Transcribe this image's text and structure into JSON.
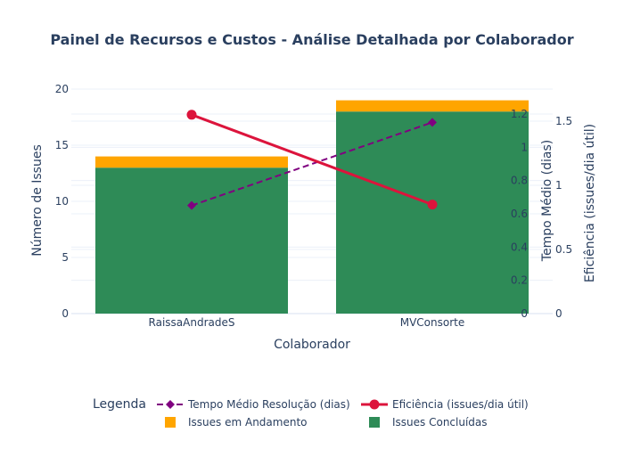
{
  "chart_data": {
    "type": "bar",
    "title": "Painel de Recursos e Custos - Análise Detalhada por Colaborador",
    "xlabel": "Colaborador",
    "categories": [
      "RaissaAndradeS",
      "MVConsorte"
    ],
    "barmode": "stack",
    "grid": true,
    "legend_position": "bottom-center",
    "legend_title": "Legenda",
    "axes": {
      "y": {
        "label": "Número de Issues",
        "range": [
          0,
          20
        ],
        "ticks": [
          "0",
          "5",
          "10",
          "15",
          "20"
        ]
      },
      "y2": {
        "label": "Tempo Médio (dias)",
        "range": [
          0,
          1.35
        ],
        "ticks": [
          "0",
          "0.2",
          "0.4",
          "0.6",
          "0.8",
          "1",
          "1.2"
        ]
      },
      "y3": {
        "label": "Eficiência (issues/dia útil)",
        "range": [
          0,
          1.75
        ],
        "ticks": [
          "0",
          "0.5",
          "1",
          "1.5"
        ]
      }
    },
    "series": [
      {
        "name": "Issues Concluídas",
        "type": "bar",
        "axis": "y",
        "color": "#2e8b57",
        "values": [
          13,
          18
        ]
      },
      {
        "name": "Issues em Andamento",
        "type": "bar",
        "axis": "y",
        "color": "#ffa500",
        "values": [
          1,
          1
        ]
      },
      {
        "name": "Tempo Médio Resolução (dias)",
        "type": "line",
        "axis": "y2",
        "color": "#800080",
        "dash": "dashed",
        "marker": "diamond",
        "values": [
          0.65,
          1.15
        ]
      },
      {
        "name": "Eficiência (issues/dia útil)",
        "type": "line",
        "axis": "y3",
        "color": "#dc143c",
        "dash": "solid",
        "marker": "circle",
        "values": [
          1.55,
          0.85
        ]
      }
    ],
    "legend_order": [
      "Tempo Médio Resolução (dias)",
      "Eficiência (issues/dia útil)",
      "Issues em Andamento",
      "Issues Concluídas"
    ]
  }
}
